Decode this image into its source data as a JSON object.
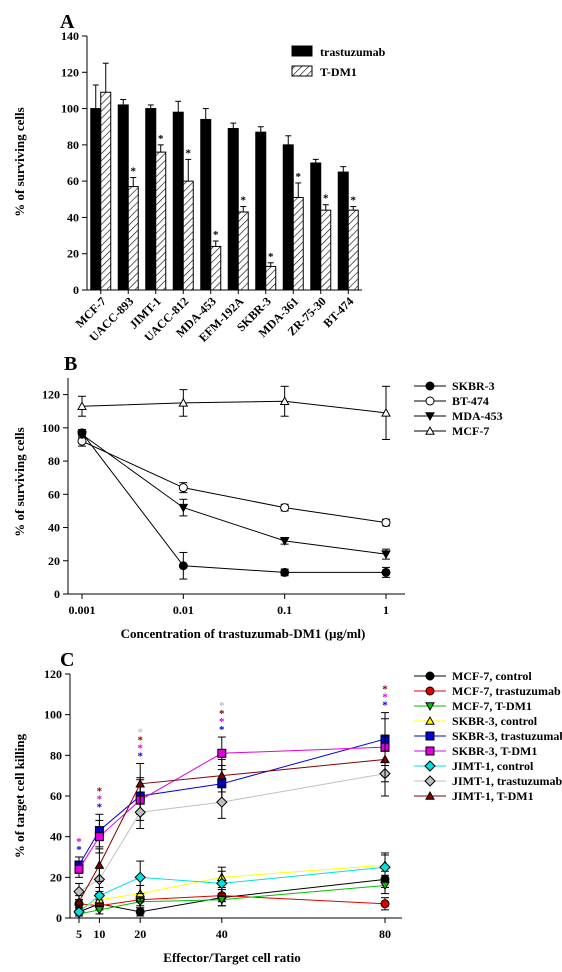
{
  "chart_data": [
    {
      "panel_label": "A",
      "type": "bar",
      "ylabel": "% of surviving cells",
      "xlabel": "",
      "ylim": [
        0,
        140
      ],
      "yticks": [
        0,
        20,
        40,
        60,
        80,
        100,
        120,
        140
      ],
      "categories": [
        "MCF-7",
        "UACC-893",
        "JIMT-1",
        "UACC-812",
        "MDA-453",
        "EFM-192A",
        "SKBR-3",
        "MDA-361",
        "ZR-75-30",
        "BT-474"
      ],
      "legend_position": "top-right",
      "series": [
        {
          "name": "trastuzumab",
          "fill": "#000000",
          "values": [
            100,
            102,
            100,
            98,
            94,
            89,
            87,
            80,
            70,
            65
          ],
          "errors": [
            13,
            3,
            2,
            6,
            6,
            3,
            3,
            5,
            2,
            3
          ],
          "significant": [
            false,
            false,
            false,
            false,
            false,
            false,
            false,
            false,
            false,
            false
          ]
        },
        {
          "name": "T-DM1",
          "fill": "hatch",
          "values": [
            109,
            57,
            76,
            60,
            24,
            43,
            13,
            51,
            44,
            44
          ],
          "errors": [
            16,
            5,
            4,
            12,
            3,
            3,
            2,
            8,
            3,
            2
          ],
          "significant": [
            false,
            true,
            true,
            true,
            true,
            true,
            true,
            true,
            true,
            true
          ]
        }
      ],
      "significance_marker": "*"
    },
    {
      "panel_label": "B",
      "type": "line",
      "xscale": "log",
      "x": [
        0.001,
        0.01,
        0.1,
        1
      ],
      "xticks": [
        "0.001",
        "0.01",
        "0.1",
        "1"
      ],
      "xlabel": "Concentration of trastuzumab-DM1 (µg/ml)",
      "ylabel": "% of surviving cells",
      "ylim": [
        0,
        130
      ],
      "yticks": [
        0,
        20,
        40,
        60,
        80,
        100,
        120
      ],
      "legend_position": "right",
      "series": [
        {
          "name": "SKBR-3",
          "marker": "circle-filled",
          "values": [
            97,
            17,
            13,
            13
          ],
          "errors": [
            2,
            8,
            2,
            3
          ]
        },
        {
          "name": "BT-474",
          "marker": "circle-open",
          "values": [
            92,
            64,
            52,
            43
          ],
          "errors": [
            3,
            3,
            2,
            2
          ]
        },
        {
          "name": "MDA-453",
          "marker": "triangle-down-filled",
          "values": [
            96,
            52,
            32,
            24
          ],
          "errors": [
            2,
            5,
            2,
            3
          ]
        },
        {
          "name": "MCF-7",
          "marker": "triangle-up-open",
          "values": [
            113,
            115,
            116,
            109
          ],
          "errors": [
            6,
            8,
            9,
            16
          ]
        }
      ]
    },
    {
      "panel_label": "C",
      "type": "line",
      "x": [
        5,
        10,
        20,
        40,
        80
      ],
      "xticks": [
        "5",
        "10",
        "20",
        "40",
        "80"
      ],
      "xlabel": "Effector/Target cell ratio",
      "ylabel": "% of target cell killing",
      "ylim": [
        0,
        120
      ],
      "yticks": [
        0,
        20,
        40,
        60,
        80,
        100,
        120
      ],
      "legend_position": "right",
      "series": [
        {
          "name": "MCF-7, control",
          "color": "#000000",
          "marker": "circle",
          "values": [
            3,
            7,
            3,
            10,
            19
          ],
          "errors": [
            2,
            2,
            2,
            4,
            4
          ]
        },
        {
          "name": "MCF-7, trastuzumab",
          "color": "#e00000",
          "marker": "circle",
          "values": [
            7,
            6,
            9,
            11,
            7
          ],
          "errors": [
            2,
            2,
            3,
            3,
            3
          ]
        },
        {
          "name": "MCF-7, T-DM1",
          "color": "#00c000",
          "marker": "triangle-down",
          "values": [
            2,
            4,
            8,
            9,
            16
          ],
          "errors": [
            2,
            2,
            3,
            3,
            4
          ]
        },
        {
          "name": "SKBR-3, control",
          "color": "#ffff00",
          "marker": "triangle-up",
          "values": [
            4,
            9,
            12,
            20,
            26
          ],
          "errors": [
            2,
            3,
            4,
            5,
            5
          ]
        },
        {
          "name": "SKBR-3, trastuzumab",
          "color": "#0000e0",
          "marker": "square",
          "values": [
            26,
            43,
            60,
            66,
            88
          ],
          "errors": [
            4,
            8,
            9,
            9,
            13
          ]
        },
        {
          "name": "SKBR-3, T-DM1",
          "color": "#e000e0",
          "marker": "square",
          "values": [
            24,
            40,
            58,
            81,
            84
          ],
          "errors": [
            4,
            8,
            10,
            8,
            14
          ]
        },
        {
          "name": "JIMT-1, control",
          "color": "#00e0e0",
          "marker": "diamond",
          "values": [
            3,
            11,
            20,
            17,
            25
          ],
          "errors": [
            2,
            4,
            8,
            6,
            7
          ]
        },
        {
          "name": "JIMT-1, trastuzumab",
          "color": "#c0c0c0",
          "marker": "diamond",
          "values": [
            13,
            19,
            52,
            57,
            71
          ],
          "errors": [
            4,
            6,
            8,
            8,
            11
          ]
        },
        {
          "name": "JIMT-1, T-DM1",
          "color": "#800000",
          "marker": "triangle-up",
          "values": [
            8,
            26,
            66,
            70,
            78
          ],
          "errors": [
            3,
            8,
            10,
            8,
            11
          ]
        }
      ],
      "significance_markers": [
        {
          "x": 5,
          "colors": [
            "#e000e0",
            "#0000e0"
          ]
        },
        {
          "x": 10,
          "colors": [
            "#800000",
            "#e000e0",
            "#0000e0"
          ]
        },
        {
          "x": 20,
          "colors": [
            "#c0c0c0",
            "#800000",
            "#e000e0",
            "#0000e0"
          ]
        },
        {
          "x": 40,
          "colors": [
            "#c0c0c0",
            "#800000",
            "#e000e0",
            "#0000e0"
          ]
        },
        {
          "x": 80,
          "colors": [
            "#800000",
            "#e000e0",
            "#0000e0"
          ]
        }
      ]
    }
  ]
}
